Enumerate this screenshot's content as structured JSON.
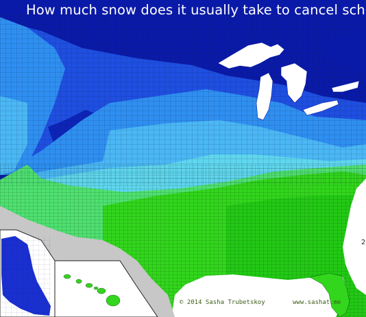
{
  "title": "How much snow does it usually take to cancel schools?",
  "credit_left": "© 2014 Sasha Trubetskoy",
  "credit_right": "www.sashat.me",
  "edge_label": "2",
  "legend_colors": {
    "most_snow": "#0a1aa8",
    "deep_blue": "#1f4fe0",
    "mid_blue": "#2f8ff0",
    "light_blue": "#4bb7f4",
    "cyan": "#5fd6ee",
    "light_green": "#4fe070",
    "green": "#32d61c",
    "bright_green": "#22c914",
    "no_data_land": "#c7c7c7",
    "water": "#ffffff"
  }
}
